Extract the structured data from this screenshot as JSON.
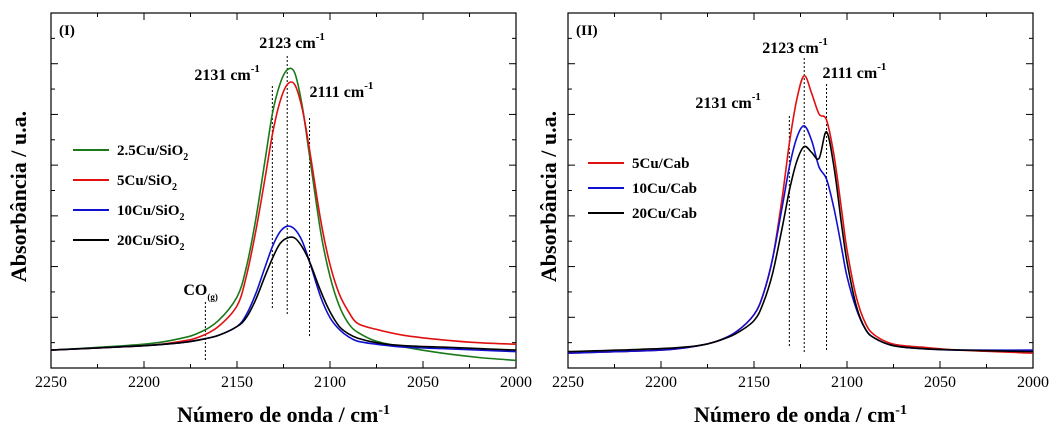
{
  "chart_data": [
    {
      "type": "line",
      "panel_label": "(I)",
      "xlabel": "Número de onda / cm",
      "xlabel_sup": "-1",
      "ylabel": "Absorbância / u.a.",
      "xlim": [
        2250,
        2000
      ],
      "ylim": [
        0,
        1
      ],
      "x_reversed": true,
      "y_ticks_labeled": false,
      "x_ticks": [
        "2250",
        "2200",
        "2150",
        "2100",
        "2050",
        "2000"
      ],
      "x": [
        2250,
        2200,
        2180,
        2170,
        2160,
        2150,
        2145,
        2140,
        2135,
        2131,
        2127,
        2123,
        2119,
        2115,
        2111,
        2105,
        2100,
        2095,
        2090,
        2085,
        2075,
        2060,
        2040,
        2020,
        2000
      ],
      "series": [
        {
          "name": "2.5Cu/SiO2",
          "label_main": "2.5Cu/SiO",
          "label_sub": "2",
          "color": "#1a7a1a",
          "values": [
            0.02,
            0.04,
            0.06,
            0.08,
            0.12,
            0.2,
            0.3,
            0.46,
            0.66,
            0.82,
            0.92,
            0.97,
            0.96,
            0.85,
            0.68,
            0.42,
            0.27,
            0.17,
            0.11,
            0.08,
            0.05,
            0.03,
            0.01,
            -0.005,
            -0.015
          ]
        },
        {
          "name": "5Cu/SiO2",
          "label_main": "5Cu/SiO",
          "label_sub": "2",
          "color": "#e01010",
          "values": [
            0.02,
            0.035,
            0.05,
            0.065,
            0.1,
            0.17,
            0.27,
            0.42,
            0.6,
            0.75,
            0.86,
            0.92,
            0.92,
            0.84,
            0.7,
            0.46,
            0.31,
            0.21,
            0.15,
            0.11,
            0.09,
            0.07,
            0.055,
            0.045,
            0.04
          ]
        },
        {
          "name": "10Cu/SiO2",
          "label_main": "10Cu/SiO",
          "label_sub": "2",
          "color": "#1010d0",
          "values": [
            0.02,
            0.035,
            0.045,
            0.055,
            0.07,
            0.1,
            0.14,
            0.21,
            0.3,
            0.37,
            0.42,
            0.44,
            0.43,
            0.39,
            0.32,
            0.2,
            0.13,
            0.09,
            0.065,
            0.05,
            0.04,
            0.03,
            0.025,
            0.02,
            0.015
          ]
        },
        {
          "name": "20Cu/SiO2",
          "label_main": "20Cu/SiO",
          "label_sub": "2",
          "color": "#000000",
          "values": [
            0.02,
            0.035,
            0.045,
            0.055,
            0.07,
            0.1,
            0.13,
            0.19,
            0.27,
            0.33,
            0.38,
            0.4,
            0.4,
            0.37,
            0.32,
            0.22,
            0.15,
            0.1,
            0.075,
            0.06,
            0.045,
            0.035,
            0.03,
            0.025,
            0.02
          ]
        }
      ],
      "legend_position": "left",
      "annotations": [
        {
          "text": "2131 cm",
          "sup": "-1",
          "x": 2131
        },
        {
          "text": "2123 cm",
          "sup": "-1",
          "x": 2123
        },
        {
          "text": "2111 cm",
          "sup": "-1",
          "x": 2111
        },
        {
          "text": "CO",
          "sub": "(g)",
          "x": 2167
        }
      ]
    },
    {
      "type": "line",
      "panel_label": "(II)",
      "xlabel": "Número de onda / cm",
      "xlabel_sup": "-1",
      "ylabel": "Absorbância / u.a.",
      "xlim": [
        2250,
        2000
      ],
      "ylim": [
        0,
        1
      ],
      "x_reversed": true,
      "y_ticks_labeled": false,
      "x_ticks": [
        "2250",
        "2200",
        "2150",
        "2100",
        "2050",
        "2000"
      ],
      "x": [
        2250,
        2200,
        2180,
        2170,
        2160,
        2150,
        2145,
        2140,
        2135,
        2131,
        2127,
        2123,
        2119,
        2115,
        2111,
        2107,
        2103,
        2100,
        2095,
        2090,
        2085,
        2075,
        2060,
        2040,
        2000
      ],
      "series": [
        {
          "name": "5Cu/Cab",
          "label_main": "5Cu/Cab",
          "color": "#e01010",
          "values": [
            0.01,
            0.02,
            0.035,
            0.05,
            0.08,
            0.14,
            0.21,
            0.33,
            0.53,
            0.72,
            0.87,
            0.95,
            0.89,
            0.82,
            0.8,
            0.68,
            0.5,
            0.36,
            0.2,
            0.11,
            0.07,
            0.04,
            0.03,
            0.02,
            0.01
          ]
        },
        {
          "name": "10Cu/Cab",
          "label_main": "10Cu/Cab",
          "color": "#1010d0",
          "values": [
            0.01,
            0.02,
            0.035,
            0.05,
            0.08,
            0.14,
            0.21,
            0.33,
            0.5,
            0.64,
            0.74,
            0.78,
            0.73,
            0.64,
            0.6,
            0.5,
            0.37,
            0.27,
            0.16,
            0.09,
            0.06,
            0.035,
            0.025,
            0.02,
            0.02
          ]
        },
        {
          "name": "20Cu/Cab",
          "label_main": "20Cu/Cab",
          "color": "#000000",
          "values": [
            0.015,
            0.025,
            0.035,
            0.05,
            0.075,
            0.12,
            0.18,
            0.28,
            0.43,
            0.56,
            0.66,
            0.71,
            0.69,
            0.67,
            0.76,
            0.64,
            0.45,
            0.32,
            0.17,
            0.09,
            0.06,
            0.035,
            0.025,
            0.02,
            0.015
          ]
        }
      ],
      "legend_position": "left",
      "annotations": [
        {
          "text": "2131 cm",
          "sup": "-1",
          "x": 2131
        },
        {
          "text": "2123 cm",
          "sup": "-1",
          "x": 2123
        },
        {
          "text": "2111 cm",
          "sup": "-1",
          "x": 2111
        }
      ]
    }
  ]
}
